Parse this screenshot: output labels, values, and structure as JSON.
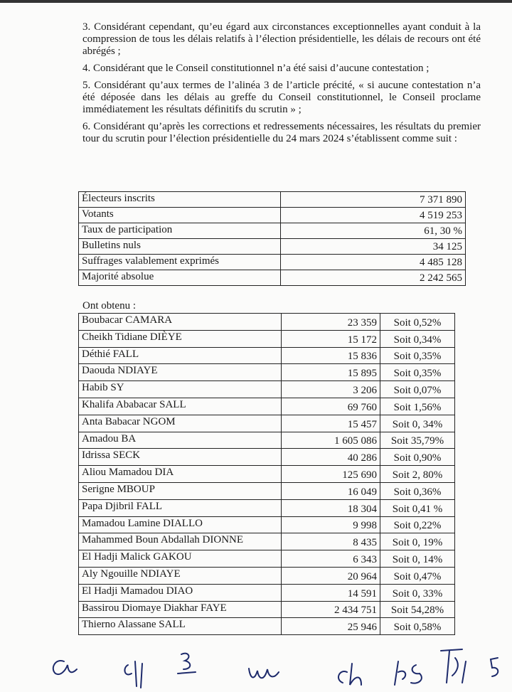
{
  "paragraphs": [
    "3. Considérant cependant, qu’eu égard aux circonstances exceptionnelles ayant conduit à la compression de tous les délais relatifs à l’élection présidentielle, les délais de recours ont été abrégés ;",
    "4. Considérant que le Conseil constitutionnel n’a été saisi d’aucune contestation ;",
    "5. Considérant qu’aux termes de l’alinéa 3 de l’article précité, « si aucune contestation n’a été déposée dans les délais au greffe du Conseil constitutionnel, le Conseil proclame immédiatement les résultats définitifs du scrutin » ;",
    "6. Considérant qu’après les corrections et redressements nécessaires, les résultats du premier tour du scrutin pour l’élection présidentielle du 24 mars 2024 s’établissent comme suit :"
  ],
  "summary": [
    {
      "label": "Électeurs inscrits",
      "value": "7 371 890"
    },
    {
      "label": "Votants",
      "value": "4 519 253"
    },
    {
      "label": "Taux de participation",
      "value": "61, 30 %"
    },
    {
      "label": "Bulletins nuls",
      "value": "34 125"
    },
    {
      "label": "Suffrages valablement exprimés",
      "value": "4 485 128"
    },
    {
      "label": "Majorité absolue",
      "value": "2 242 565"
    }
  ],
  "ont_obtenu": "Ont obtenu :",
  "candidates": [
    {
      "name": "Boubacar CAMARA",
      "votes": "23 359",
      "pct": "Soit 0,52%"
    },
    {
      "name": "Cheikh Tidiane DIÈYE",
      "votes": "15 172",
      "pct": "Soit 0,34%"
    },
    {
      "name": "Déthié FALL",
      "votes": "15 836",
      "pct": "Soit 0,35%"
    },
    {
      "name": "Daouda NDIAYE",
      "votes": "15 895",
      "pct": "Soit 0,35%"
    },
    {
      "name": "Habib SY",
      "votes": "3 206",
      "pct": "Soit 0,07%"
    },
    {
      "name": "Khalifa Ababacar SALL",
      "votes": "69 760",
      "pct": "Soit 1,56%"
    },
    {
      "name": "Anta Babacar NGOM",
      "votes": "15 457",
      "pct": "Soit 0, 34%"
    },
    {
      "name": "Amadou BA",
      "votes": "1 605 086",
      "pct": "Soit 35,79%"
    },
    {
      "name": "Idrissa SECK",
      "votes": "40 286",
      "pct": "Soit 0,90%"
    },
    {
      "name": "Aliou Mamadou DIA",
      "votes": "125 690",
      "pct": "Soit 2, 80%"
    },
    {
      "name": "Serigne MBOUP",
      "votes": "16 049",
      "pct": "Soit 0,36%"
    },
    {
      "name": "Papa Djibril FALL",
      "votes": "18 304",
      "pct": "Soit 0,41 %"
    },
    {
      "name": "Mamadou Lamine DIALLO",
      "votes": "9 998",
      "pct": "Soit 0,22%"
    },
    {
      "name": "Mahammed Boun Abdallah DIONNE",
      "votes": "8 435",
      "pct": "Soit 0, 19%"
    },
    {
      "name": "El Hadji Malick GAKOU",
      "votes": "6 343",
      "pct": "Soit 0, 14%"
    },
    {
      "name": "Aly Ngouille NDIAYE",
      "votes": "20 964",
      "pct": "Soit 0,47%"
    },
    {
      "name": "El Hadji Mamadou DIAO",
      "votes": "14 591",
      "pct": "Soit 0, 33%"
    },
    {
      "name": "Bassirou Diomaye Diakhar FAYE",
      "votes": "2 434 751",
      "pct": "Soit 54,28%"
    },
    {
      "name": "Thierno Alassane SALL",
      "votes": "25 946",
      "pct": "Soit 0,58%"
    }
  ]
}
